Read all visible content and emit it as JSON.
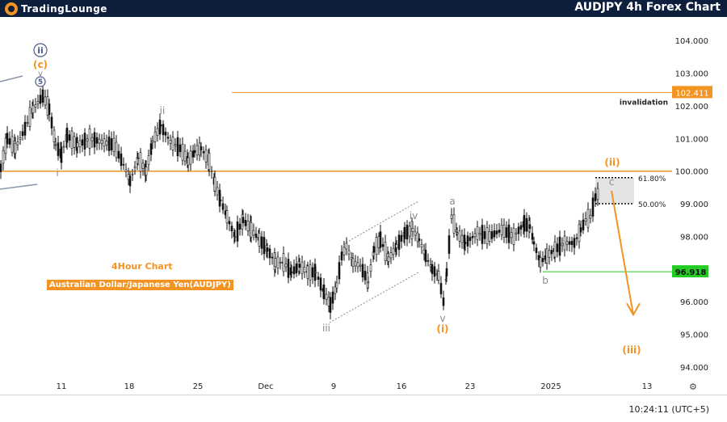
{
  "header": {
    "logo_part1": "TradingLounge",
    "logo_part2": "",
    "title": "AUDJPY 4h Forex Chart"
  },
  "info": {
    "timeframe": "4Hour Chart",
    "instrument": "Australian Dollar/Japanese Yen(AUDJPY)"
  },
  "footer": {
    "time": "10:24:11 (UTC+5)"
  },
  "colors": {
    "orange": "#f39321",
    "navy": "#0e1f3d",
    "green": "#22cc22",
    "grey_label": "#8a8a8a",
    "wave_blue": "#4a5b8a"
  },
  "chart_data": {
    "type": "candlestick",
    "ylim": [
      93.7,
      104.6
    ],
    "yticks": [
      "104.000",
      "103.000",
      "102.000",
      "101.000",
      "100.000",
      "99.000",
      "98.000",
      "97.000",
      "96.000",
      "95.000",
      "94.000"
    ],
    "xticks": [
      "11",
      "18",
      "25",
      "Dec",
      "9",
      "16",
      "23",
      "2025",
      "13"
    ],
    "price_line_100": 100.0,
    "invalidation": {
      "label": "invalidation",
      "value": "102.411"
    },
    "support": {
      "value": "96.918"
    },
    "fib_levels": [
      {
        "label": "61.80%",
        "value": 99.8
      },
      {
        "label": "50.00%",
        "value": 99.0
      }
    ],
    "wave_labels": [
      {
        "text": "ii",
        "role": "circled-blue"
      },
      {
        "text": "(c)",
        "role": "orange"
      },
      {
        "text": "v",
        "role": "grey-small"
      },
      {
        "text": "5",
        "role": "circled-blue-small"
      },
      {
        "text": "i",
        "role": "grey"
      },
      {
        "text": "ii",
        "role": "grey"
      },
      {
        "text": "iii",
        "role": "grey"
      },
      {
        "text": "iv",
        "role": "grey"
      },
      {
        "text": "v",
        "role": "grey"
      },
      {
        "text": "(i)",
        "role": "orange"
      },
      {
        "text": "a",
        "role": "grey"
      },
      {
        "text": "b",
        "role": "grey"
      },
      {
        "text": "c",
        "role": "grey"
      },
      {
        "text": "(ii)",
        "role": "orange"
      },
      {
        "text": "(iii)",
        "role": "orange"
      }
    ],
    "path_points": [
      [
        0,
        100.1
      ],
      [
        8,
        101.0
      ],
      [
        18,
        100.7
      ],
      [
        30,
        101.3
      ],
      [
        40,
        101.9
      ],
      [
        52,
        102.3
      ],
      [
        60,
        101.9
      ],
      [
        68,
        100.8
      ],
      [
        75,
        100.5
      ],
      [
        82,
        101.1
      ],
      [
        95,
        100.8
      ],
      [
        110,
        101.0
      ],
      [
        125,
        100.9
      ],
      [
        140,
        100.8
      ],
      [
        152,
        100.2
      ],
      [
        160,
        99.7
      ],
      [
        170,
        100.4
      ],
      [
        180,
        100.0
      ],
      [
        188,
        100.9
      ],
      [
        198,
        101.4
      ],
      [
        210,
        100.9
      ],
      [
        222,
        100.7
      ],
      [
        232,
        100.3
      ],
      [
        240,
        100.6
      ],
      [
        248,
        100.7
      ],
      [
        258,
        100.3
      ],
      [
        265,
        99.6
      ],
      [
        272,
        99.1
      ],
      [
        280,
        98.6
      ],
      [
        290,
        98.0
      ],
      [
        300,
        98.5
      ],
      [
        310,
        98.2
      ],
      [
        320,
        97.9
      ],
      [
        330,
        97.6
      ],
      [
        340,
        97.2
      ],
      [
        350,
        97.2
      ],
      [
        360,
        96.9
      ],
      [
        370,
        97.1
      ],
      [
        380,
        96.9
      ],
      [
        390,
        96.9
      ],
      [
        400,
        96.3
      ],
      [
        408,
        95.9
      ],
      [
        416,
        96.5
      ],
      [
        422,
        97.4
      ],
      [
        428,
        97.7
      ],
      [
        436,
        97.2
      ],
      [
        445,
        97.1
      ],
      [
        455,
        96.6
      ],
      [
        462,
        97.6
      ],
      [
        470,
        97.9
      ],
      [
        480,
        97.3
      ],
      [
        490,
        97.7
      ],
      [
        500,
        98.1
      ],
      [
        510,
        98.2
      ],
      [
        518,
        97.9
      ],
      [
        526,
        97.4
      ],
      [
        534,
        97.0
      ],
      [
        542,
        96.8
      ],
      [
        548,
        96.0
      ],
      [
        552,
        96.9
      ],
      [
        558,
        98.6
      ],
      [
        565,
        98.1
      ],
      [
        575,
        97.8
      ],
      [
        590,
        98.1
      ],
      [
        605,
        98.0
      ],
      [
        620,
        98.2
      ],
      [
        635,
        98.0
      ],
      [
        648,
        98.4
      ],
      [
        655,
        98.3
      ],
      [
        660,
        97.8
      ],
      [
        668,
        97.2
      ],
      [
        676,
        97.4
      ],
      [
        686,
        97.6
      ],
      [
        698,
        97.8
      ],
      [
        710,
        97.8
      ],
      [
        718,
        98.2
      ],
      [
        724,
        98.5
      ],
      [
        730,
        98.6
      ],
      [
        736,
        99.2
      ],
      [
        742,
        99.4
      ]
    ],
    "projection": [
      [
        757,
        99.4
      ],
      [
        784,
        95.6
      ]
    ]
  }
}
